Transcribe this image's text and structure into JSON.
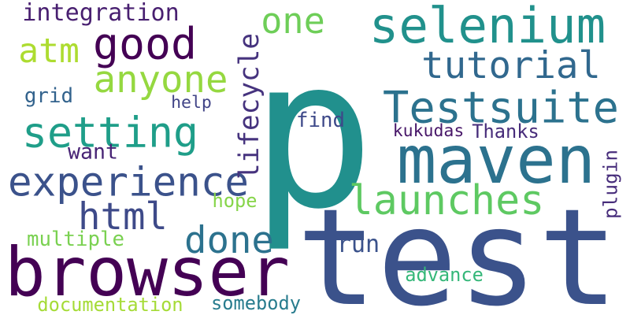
{
  "word_cloud": {
    "words": [
      {
        "text": "p",
        "color": "#21908d"
      },
      {
        "text": "test",
        "color": "#3b528b"
      },
      {
        "text": "maven",
        "color": "#2c728e"
      },
      {
        "text": "browser",
        "color": "#440154"
      },
      {
        "text": "selenium",
        "color": "#21918c"
      },
      {
        "text": "tutorial",
        "color": "#31688e"
      },
      {
        "text": "Testsuite",
        "color": "#2c728e"
      },
      {
        "text": "experience",
        "color": "#3b528b"
      },
      {
        "text": "launches",
        "color": "#5ec962"
      },
      {
        "text": "anyone",
        "color": "#95d840"
      },
      {
        "text": "setting",
        "color": "#1f9e89"
      },
      {
        "text": "good",
        "color": "#440154"
      },
      {
        "text": "html",
        "color": "#3e4a89"
      },
      {
        "text": "done",
        "color": "#2c728e"
      },
      {
        "text": "one",
        "color": "#6ece58"
      },
      {
        "text": "atm",
        "color": "#addc30"
      },
      {
        "text": "integration",
        "color": "#481f70"
      },
      {
        "text": "lifecycle",
        "color": "#46337e"
      },
      {
        "text": "plugin",
        "color": "#472d7b"
      },
      {
        "text": "want",
        "color": "#482475"
      },
      {
        "text": "run",
        "color": "#3b528b"
      },
      {
        "text": "multiple",
        "color": "#7ad151"
      },
      {
        "text": "documentation",
        "color": "#a5db36"
      },
      {
        "text": "somebody",
        "color": "#287c8e"
      },
      {
        "text": "advance",
        "color": "#35b779"
      },
      {
        "text": "hope",
        "color": "#86d549"
      },
      {
        "text": "kukudas",
        "color": "#481769"
      },
      {
        "text": "Thanks",
        "color": "#472c7a"
      },
      {
        "text": "find",
        "color": "#3e4989"
      },
      {
        "text": "help",
        "color": "#414487"
      },
      {
        "text": "grid",
        "color": "#33638d"
      }
    ]
  }
}
